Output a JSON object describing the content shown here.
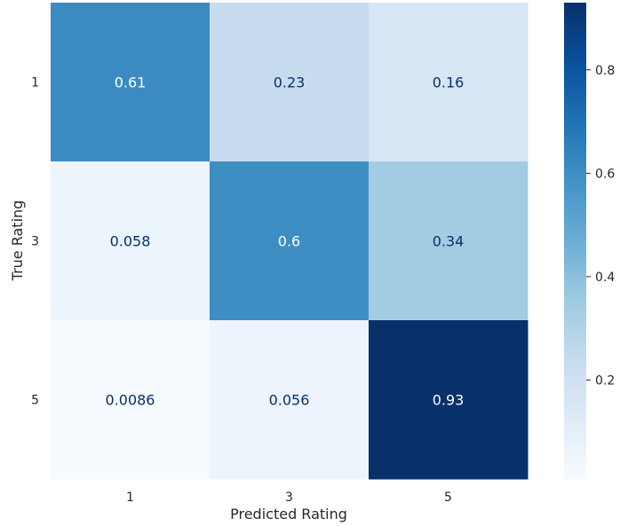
{
  "chart_data": {
    "type": "heatmap",
    "title": "",
    "xlabel": "Predicted Rating",
    "ylabel": "True Rating",
    "x_categories": [
      "1",
      "3",
      "5"
    ],
    "y_categories": [
      "1",
      "3",
      "5"
    ],
    "values": [
      [
        0.61,
        0.23,
        0.16
      ],
      [
        0.058,
        0.6,
        0.34
      ],
      [
        0.0086,
        0.056,
        0.93
      ]
    ],
    "value_labels": [
      [
        "0.61",
        "0.23",
        "0.16"
      ],
      [
        "0.058",
        "0.6",
        "0.34"
      ],
      [
        "0.0086",
        "0.056",
        "0.93"
      ]
    ],
    "colormap": "Blues",
    "vmin": 0.0086,
    "vmax": 0.93,
    "colorbar": {
      "ticks": [
        0.2,
        0.4,
        0.6,
        0.8
      ],
      "tick_labels": [
        "0.2",
        "0.4",
        "0.6",
        "0.8"
      ]
    },
    "grid": false,
    "legend": "colorbar at right"
  }
}
